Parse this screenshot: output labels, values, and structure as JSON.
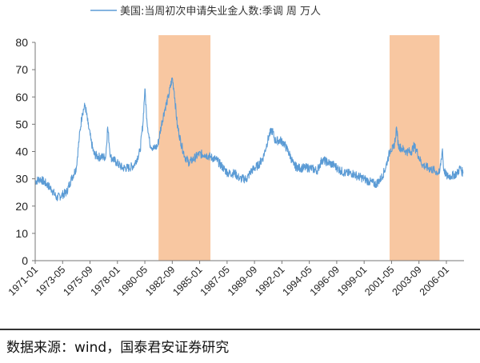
{
  "chart_data": {
    "type": "line",
    "legend_position": "top-center",
    "grid": false,
    "series": [
      {
        "name": "美国:当周初次申请失业金人数:季调 周 万人",
        "color": "#5b9bd5",
        "points": [
          [
            "1971-01",
            29
          ],
          [
            "1971-06",
            30
          ],
          [
            "1972-01",
            28
          ],
          [
            "1972-06",
            26
          ],
          [
            "1972-11",
            23
          ],
          [
            "1973-04",
            24
          ],
          [
            "1973-09",
            25
          ],
          [
            "1974-02",
            30
          ],
          [
            "1974-07",
            34
          ],
          [
            "1974-10",
            45
          ],
          [
            "1975-01",
            54
          ],
          [
            "1975-04",
            57
          ],
          [
            "1975-07",
            50
          ],
          [
            "1975-10",
            44
          ],
          [
            "1976-01",
            39
          ],
          [
            "1976-06",
            38
          ],
          [
            "1977-01",
            38
          ],
          [
            "1977-03",
            49
          ],
          [
            "1977-06",
            38
          ],
          [
            "1977-12",
            36
          ],
          [
            "1978-06",
            34
          ],
          [
            "1979-01",
            34
          ],
          [
            "1979-06",
            35
          ],
          [
            "1979-12",
            40
          ],
          [
            "1980-03",
            50
          ],
          [
            "1980-05",
            63
          ],
          [
            "1980-07",
            52
          ],
          [
            "1980-10",
            43
          ],
          [
            "1981-02",
            41
          ],
          [
            "1981-06",
            42
          ],
          [
            "1981-10",
            50
          ],
          [
            "1982-01",
            55
          ],
          [
            "1982-05",
            60
          ],
          [
            "1982-09",
            67
          ],
          [
            "1982-11",
            62
          ],
          [
            "1983-02",
            50
          ],
          [
            "1983-06",
            43
          ],
          [
            "1983-10",
            38
          ],
          [
            "1984-02",
            36
          ],
          [
            "1984-06",
            37
          ],
          [
            "1984-12",
            39
          ],
          [
            "1985-06",
            39
          ],
          [
            "1985-12",
            38
          ],
          [
            "1986-06",
            37
          ],
          [
            "1987-01",
            34
          ],
          [
            "1987-06",
            32
          ],
          [
            "1988-01",
            32
          ],
          [
            "1988-06",
            30
          ],
          [
            "1989-01",
            30
          ],
          [
            "1989-06",
            33
          ],
          [
            "1990-01",
            35
          ],
          [
            "1990-06",
            38
          ],
          [
            "1990-12",
            46
          ],
          [
            "1991-03",
            48
          ],
          [
            "1991-06",
            44
          ],
          [
            "1991-12",
            44
          ],
          [
            "1992-03",
            43
          ],
          [
            "1992-06",
            41
          ],
          [
            "1992-10",
            38
          ],
          [
            "1993-01",
            35
          ],
          [
            "1993-06",
            34
          ],
          [
            "1994-01",
            34
          ],
          [
            "1994-06",
            34
          ],
          [
            "1995-01",
            33
          ],
          [
            "1995-06",
            37
          ],
          [
            "1995-12",
            36
          ],
          [
            "1996-06",
            35
          ],
          [
            "1997-01",
            33
          ],
          [
            "1997-06",
            32
          ],
          [
            "1998-01",
            32
          ],
          [
            "1998-06",
            31
          ],
          [
            "1999-01",
            30
          ],
          [
            "1999-06",
            29
          ],
          [
            "2000-01",
            28
          ],
          [
            "2000-06",
            30
          ],
          [
            "2000-10",
            33
          ],
          [
            "2001-01",
            37
          ],
          [
            "2001-04",
            41
          ],
          [
            "2001-07",
            41
          ],
          [
            "2001-09",
            45
          ],
          [
            "2001-10",
            49
          ],
          [
            "2001-12",
            42
          ],
          [
            "2002-04",
            41
          ],
          [
            "2002-08",
            40
          ],
          [
            "2003-01",
            40
          ],
          [
            "2003-04",
            42
          ],
          [
            "2003-07",
            40
          ],
          [
            "2003-10",
            37
          ],
          [
            "2004-01",
            35
          ],
          [
            "2004-06",
            34
          ],
          [
            "2005-01",
            33
          ],
          [
            "2005-06",
            32
          ],
          [
            "2005-09",
            41
          ],
          [
            "2005-10",
            34
          ],
          [
            "2006-01",
            31
          ],
          [
            "2006-06",
            31
          ],
          [
            "2006-12",
            32
          ],
          [
            "2007-03",
            34
          ],
          [
            "2007-06",
            32
          ]
        ]
      }
    ],
    "recessions": [
      [
        "1981-07",
        "1985-12"
      ],
      [
        "2001-03",
        "2005-06"
      ]
    ],
    "recession_color": "#f8c7a1",
    "y_ticks": [
      "0",
      "10",
      "20",
      "30",
      "40",
      "50",
      "60",
      "70",
      "80"
    ],
    "ylim": [
      0,
      80
    ],
    "xlim": [
      "1971-01",
      "2007-07"
    ],
    "x_ticks": [
      "1971-01",
      "1973-05",
      "1975-09",
      "1978-01",
      "1980-05",
      "1982-09",
      "1985-01",
      "1987-05",
      "1989-09",
      "1992-01",
      "1994-05",
      "1996-09",
      "1999-01",
      "2001-05",
      "2003-09",
      "2006-01"
    ]
  },
  "source_note": "数据来源：wind，国泰君安证券研究"
}
